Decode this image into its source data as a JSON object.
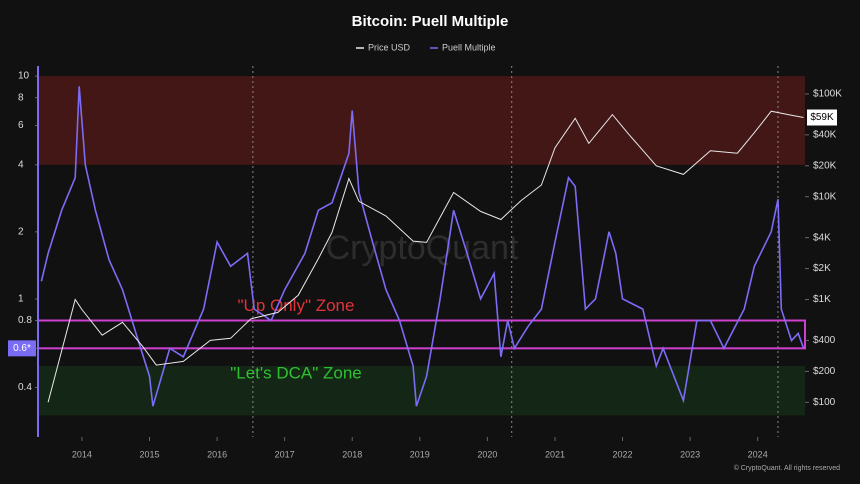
{
  "chart_data": {
    "type": "line",
    "title": "Bitcoin: Puell Multiple",
    "log_scale": true,
    "xlim": [
      2013.35,
      2024.7
    ],
    "xticks": [
      2014,
      2015,
      2016,
      2017,
      2018,
      2019,
      2020,
      2021,
      2022,
      2023,
      2024
    ],
    "ylim": [
      0.24,
      11.1
    ],
    "yticks": [
      0.4,
      0.6,
      0.8,
      1,
      2,
      4,
      6,
      8,
      10
    ],
    "y2lim": [
      46,
      187000
    ],
    "y2ticks": [
      {
        "value": 100,
        "label": "$100"
      },
      {
        "value": 200,
        "label": "$200"
      },
      {
        "value": 400,
        "label": "$400"
      },
      {
        "value": 1000,
        "label": "$1K"
      },
      {
        "value": 2000,
        "label": "$2K"
      },
      {
        "value": 4000,
        "label": "$4K"
      },
      {
        "value": 10000,
        "label": "$10K"
      },
      {
        "value": 20000,
        "label": "$20K"
      },
      {
        "value": 40000,
        "label": "$40K"
      },
      {
        "value": 100000,
        "label": "$100K"
      }
    ],
    "series": [
      {
        "name": "Price USD",
        "color": "#e8e8e8",
        "axis": "y2",
        "x": [
          2013.5,
          2013.9,
          2014.0,
          2014.3,
          2014.6,
          2014.9,
          2015.1,
          2015.5,
          2015.9,
          2016.2,
          2016.5,
          2016.9,
          2017.2,
          2017.5,
          2017.7,
          2017.95,
          2018.1,
          2018.5,
          2018.9,
          2019.1,
          2019.5,
          2019.9,
          2020.2,
          2020.5,
          2020.8,
          2021.0,
          2021.3,
          2021.5,
          2021.85,
          2022.1,
          2022.5,
          2022.9,
          2023.3,
          2023.7,
          2023.95,
          2024.2,
          2024.5,
          2024.68
        ],
        "values": [
          100,
          1000,
          800,
          450,
          600,
          350,
          230,
          250,
          400,
          420,
          650,
          750,
          1100,
          2500,
          4500,
          15000,
          9000,
          6500,
          3700,
          3600,
          11000,
          7200,
          6000,
          9200,
          13000,
          30000,
          58000,
          33000,
          63000,
          40000,
          20000,
          16500,
          28000,
          26500,
          42000,
          68000,
          62000,
          59000
        ],
        "value_labels": {
          "37": "$59K"
        }
      },
      {
        "name": "Puell Multiple",
        "color": "#7b6cf6",
        "axis": "y",
        "x": [
          2013.4,
          2013.5,
          2013.7,
          2013.9,
          2013.96,
          2014.05,
          2014.2,
          2014.4,
          2014.6,
          2014.8,
          2015.0,
          2015.05,
          2015.3,
          2015.5,
          2015.8,
          2016.0,
          2016.2,
          2016.45,
          2016.55,
          2016.8,
          2017.0,
          2017.3,
          2017.5,
          2017.7,
          2017.95,
          2018.0,
          2018.1,
          2018.3,
          2018.5,
          2018.7,
          2018.9,
          2018.95,
          2019.1,
          2019.3,
          2019.5,
          2019.7,
          2019.9,
          2020.1,
          2020.2,
          2020.3,
          2020.4,
          2020.6,
          2020.8,
          2021.0,
          2021.2,
          2021.3,
          2021.45,
          2021.6,
          2021.8,
          2021.9,
          2022.0,
          2022.3,
          2022.5,
          2022.6,
          2022.9,
          2023.1,
          2023.3,
          2023.5,
          2023.8,
          2023.95,
          2024.2,
          2024.3,
          2024.35,
          2024.5,
          2024.6,
          2024.68
        ],
        "values": [
          1.2,
          1.6,
          2.5,
          3.5,
          9,
          4,
          2.5,
          1.5,
          1.1,
          0.7,
          0.45,
          0.33,
          0.6,
          0.55,
          0.9,
          1.8,
          1.4,
          1.6,
          0.9,
          0.8,
          1.1,
          1.6,
          2.5,
          2.7,
          4.5,
          7,
          3,
          1.8,
          1.1,
          0.8,
          0.5,
          0.33,
          0.45,
          1.0,
          2.5,
          1.6,
          1.0,
          1.3,
          0.55,
          0.8,
          0.6,
          0.75,
          0.9,
          1.8,
          3.5,
          3.2,
          0.9,
          1.0,
          2.0,
          1.6,
          1.0,
          0.9,
          0.5,
          0.6,
          0.35,
          0.8,
          0.8,
          0.6,
          0.9,
          1.4,
          2.0,
          2.8,
          0.9,
          0.65,
          0.7,
          0.6
        ],
        "value_labels": {
          "65": "0.6*"
        }
      }
    ],
    "zones": [
      {
        "range": [
          4,
          10
        ],
        "color": "#5a1a1a"
      },
      {
        "range": [
          0.3,
          0.5
        ],
        "color": "#16301a"
      },
      {
        "range": [
          0.6,
          0.8
        ],
        "color": "#d040d0",
        "label": "\"Up Only\" Zone",
        "label_color": "#e0333a"
      }
    ],
    "annotations": [
      {
        "text": "\"Let's DCA\" Zone",
        "color": "#2ec02e"
      }
    ],
    "vlines": [
      2016.53,
      2020.36,
      2024.3
    ],
    "watermark": "CryptoQuant",
    "credit": "© CryptoQuant. All rights reserved"
  }
}
